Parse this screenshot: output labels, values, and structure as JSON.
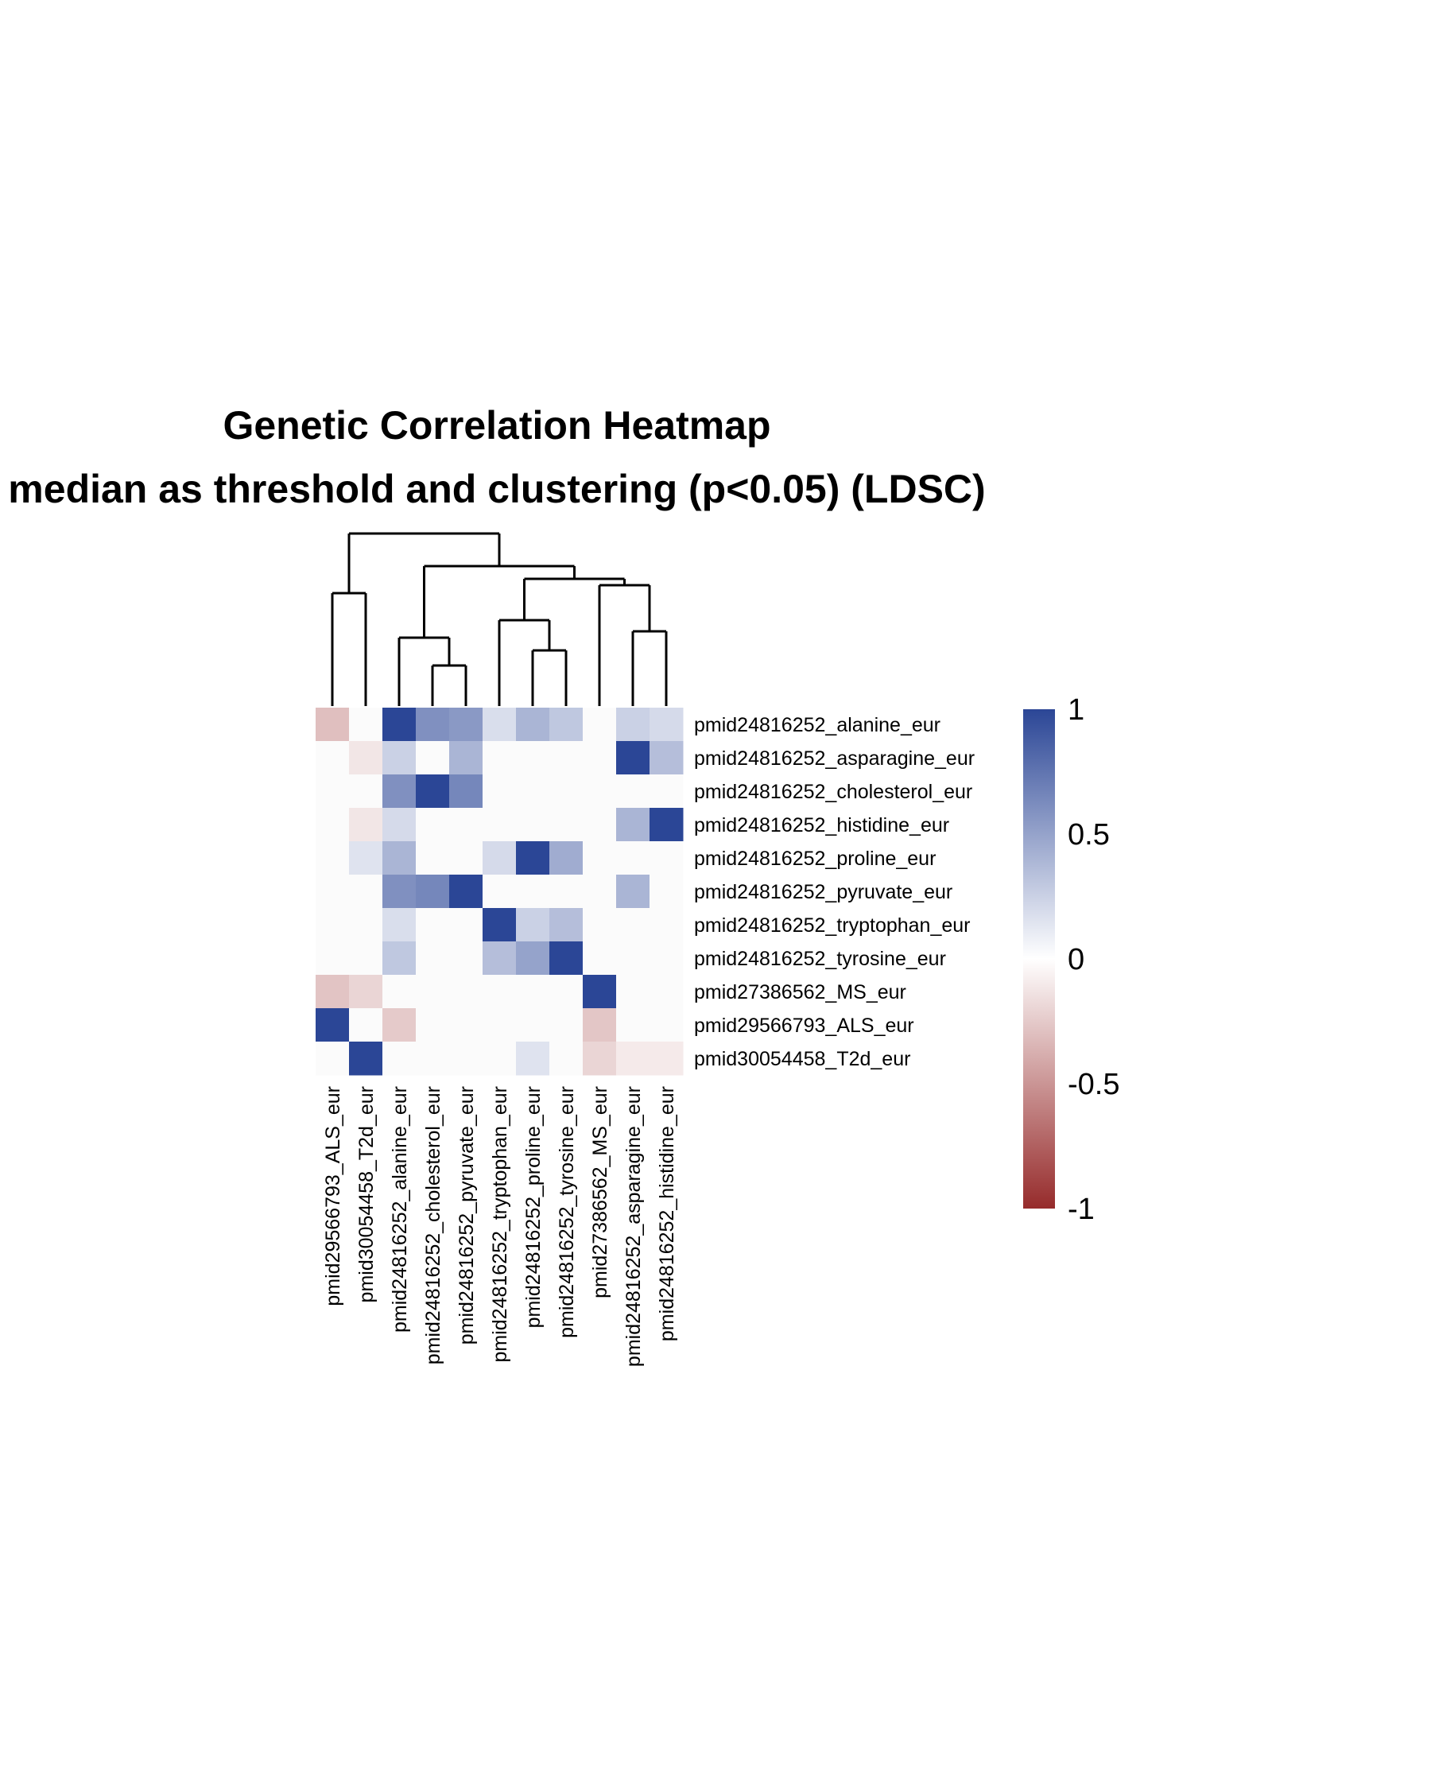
{
  "chart_data": {
    "type": "heatmap",
    "title": "Genetic Correlation Heatmap",
    "subtitle": "median as threshold and clustering (p<0.05) (LDSC)",
    "rows": [
      "pmid24816252_alanine_eur",
      "pmid24816252_asparagine_eur",
      "pmid24816252_cholesterol_eur",
      "pmid24816252_histidine_eur",
      "pmid24816252_proline_eur",
      "pmid24816252_pyruvate_eur",
      "pmid24816252_tryptophan_eur",
      "pmid24816252_tyrosine_eur",
      "pmid27386562_MS_eur",
      "pmid29566793_ALS_eur",
      "pmid30054458_T2d_eur"
    ],
    "columns": [
      "pmid29566793_ALS_eur",
      "pmid30054458_T2d_eur",
      "pmid24816252_alanine_eur",
      "pmid24816252_cholesterol_eur",
      "pmid24816252_pyruvate_eur",
      "pmid24816252_tryptophan_eur",
      "pmid24816252_proline_eur",
      "pmid24816252_tyrosine_eur",
      "pmid27386562_MS_eur",
      "pmid24816252_asparagine_eur",
      "pmid24816252_histidine_eur"
    ],
    "values": [
      [
        -0.3,
        0,
        1,
        0.6,
        0.55,
        0.18,
        0.4,
        0.3,
        0,
        0.25,
        0.2
      ],
      [
        0,
        -0.12,
        0.25,
        0,
        0.4,
        0,
        0,
        0,
        0,
        1,
        0.35
      ],
      [
        0,
        0,
        0.6,
        1,
        0.65,
        0,
        0,
        0,
        0,
        0,
        0
      ],
      [
        0,
        -0.12,
        0.2,
        0,
        0,
        0,
        0,
        0,
        0,
        0.4,
        1
      ],
      [
        0,
        0.15,
        0.4,
        0,
        0,
        0.2,
        1,
        0.45,
        0,
        0,
        0
      ],
      [
        0,
        0,
        0.6,
        0.65,
        1,
        0,
        0,
        0,
        0,
        0.4,
        0
      ],
      [
        0,
        0,
        0.18,
        0,
        0,
        1,
        0.25,
        0.35,
        0,
        0,
        0
      ],
      [
        0,
        0,
        0.3,
        0,
        0,
        0.35,
        0.5,
        1,
        0,
        0,
        0
      ],
      [
        -0.28,
        -0.2,
        0,
        0,
        0,
        0,
        0,
        0,
        1,
        0,
        0
      ],
      [
        1,
        0,
        -0.25,
        0,
        0,
        0,
        0,
        0,
        -0.27,
        0,
        0
      ],
      [
        0,
        1,
        0,
        0,
        0,
        0,
        0.15,
        0,
        -0.2,
        -0.1,
        -0.1
      ]
    ],
    "colorbar": {
      "ticks": [
        1,
        0.5,
        0,
        -0.5,
        -1
      ],
      "tick_labels": [
        "1",
        "0.5",
        "0",
        "-0.5",
        "-1"
      ],
      "range": [
        -1,
        1
      ],
      "high_color": "#2B4696",
      "mid_color": "#FFFFFF",
      "low_color": "#962B2B"
    },
    "empty_cell_color": "#FBFBFB",
    "dendrogram": "columns"
  }
}
